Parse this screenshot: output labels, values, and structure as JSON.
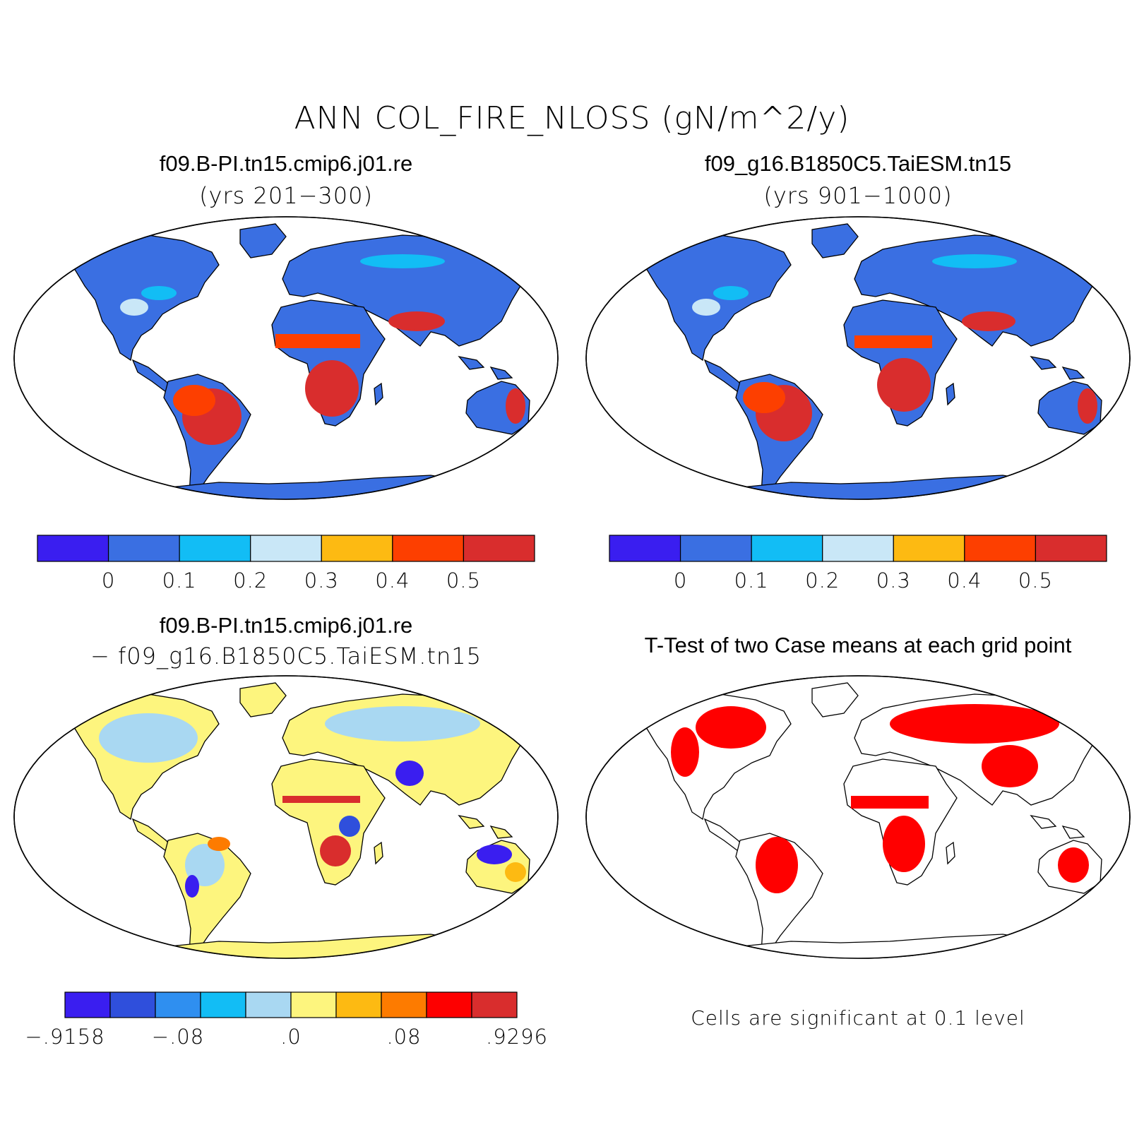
{
  "figure": {
    "title": "ANN COL_FIRE_NLOSS (gN/m^2/y)"
  },
  "panels": {
    "top_left": {
      "title": "f09.B-PI.tn15.cmip6.j01.re",
      "subtitle": "(yrs 201−300)"
    },
    "top_right": {
      "title": "f09_g16.B1850C5.TaiESM.tn15",
      "subtitle": "(yrs 901−1000)"
    },
    "bottom_left": {
      "title": "f09.B-PI.tn15.cmip6.j01.re",
      "subtitle": "− f09_g16.B1850C5.TaiESM.tn15"
    },
    "bottom_right": {
      "title": "T-Test of two Case means at each grid point",
      "note": "Cells are significant at 0.1 level"
    }
  },
  "colorbars": {
    "case": {
      "colors": [
        "#3a1ef0",
        "#3a6fe2",
        "#12bdf5",
        "#c9e7f7",
        "#fdba12",
        "#fd3f00",
        "#d92d2d"
      ],
      "labels": [
        "0",
        "0.1",
        "0.2",
        "0.3",
        "0.4",
        "0.5"
      ]
    },
    "diff": {
      "colors": [
        "#3a1ef0",
        "#2f4fdc",
        "#2f8ff0",
        "#12bdf5",
        "#a9d8f2",
        "#fdf57e",
        "#fdba12",
        "#fd7b00",
        "#fd0000",
        "#d92d2d"
      ],
      "labels": [
        "−.9158",
        "−.08",
        ".0",
        ".08",
        ".9296"
      ]
    }
  },
  "map_fill": {
    "case_base": "#3a6fe2",
    "diff_base": "#fdf57e",
    "ttest_sig": "#ff0000",
    "ocean": "#ffffff"
  }
}
